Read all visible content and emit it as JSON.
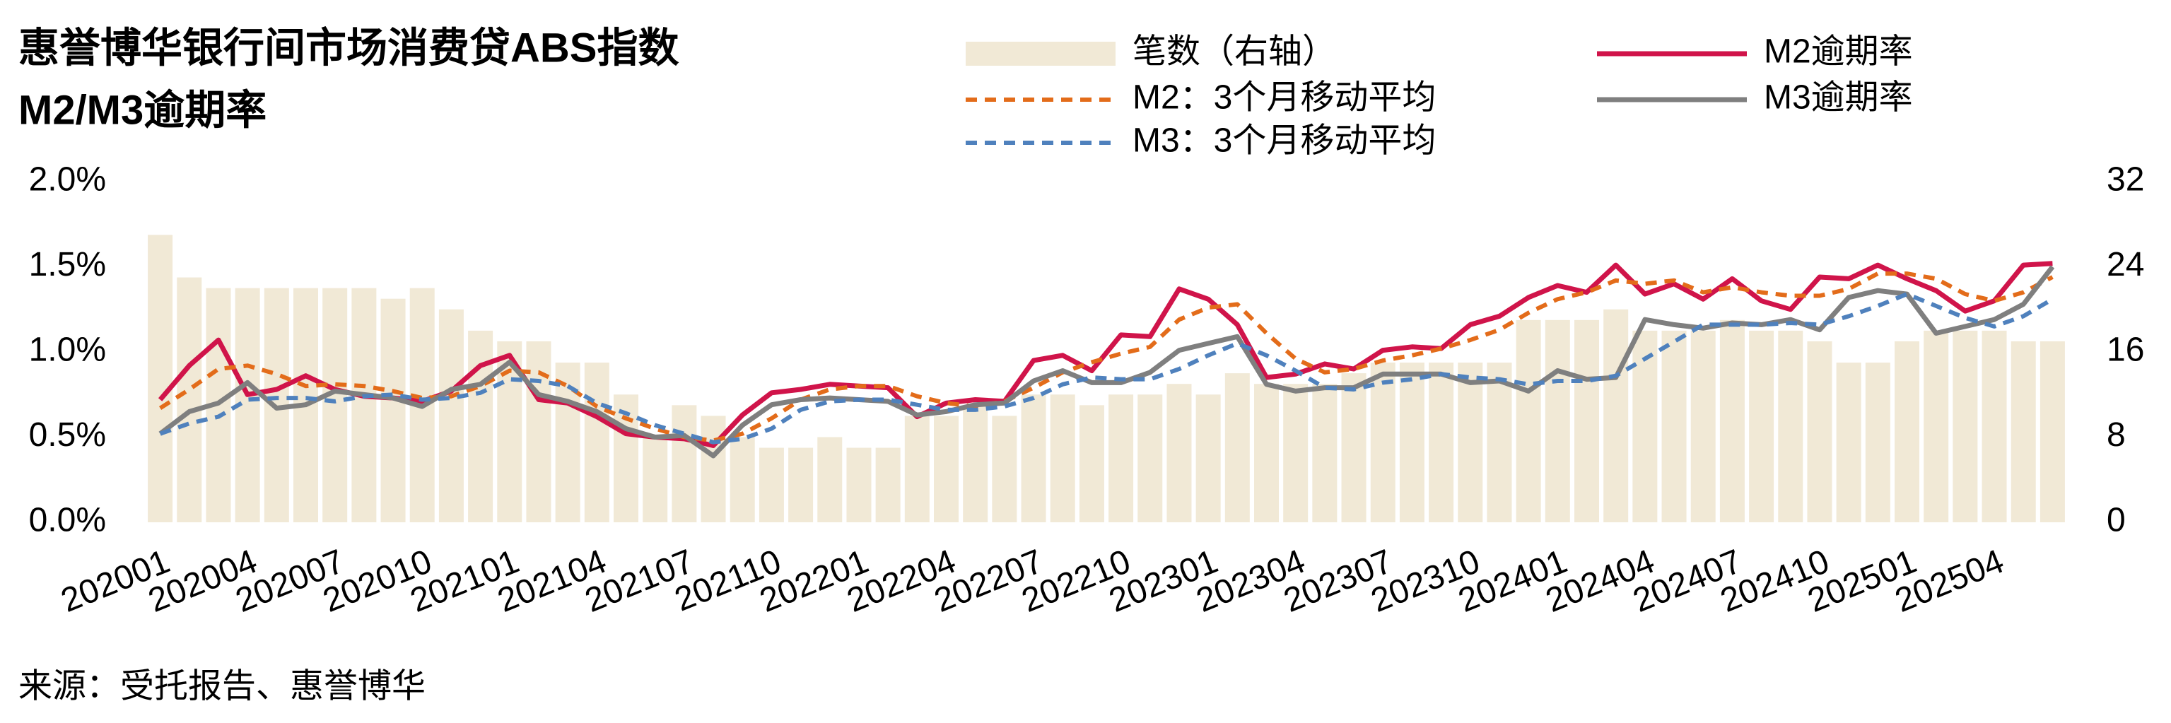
{
  "chart_data": {
    "type": "combo",
    "title": "惠誉博华银行间市场消费贷ABS指数",
    "subtitle": "M2/M3逾期率",
    "source": "来源：受托报告、惠誉博华",
    "categories": [
      "202001",
      null,
      null,
      "202004",
      null,
      null,
      "202007",
      null,
      null,
      "202010",
      null,
      null,
      "202101",
      null,
      null,
      "202104",
      null,
      null,
      "202107",
      null,
      null,
      "202110",
      null,
      null,
      "202201",
      null,
      null,
      "202204",
      null,
      null,
      "202207",
      null,
      null,
      "202210",
      null,
      null,
      "202301",
      null,
      null,
      "202304",
      null,
      null,
      "202307",
      null,
      null,
      "202310",
      null,
      null,
      "202401",
      null,
      null,
      "202404",
      null,
      null,
      "202407",
      null,
      null,
      "202410",
      null,
      null,
      "202501",
      null,
      null,
      "202504",
      null,
      null
    ],
    "ylim": [
      0,
      2.0
    ],
    "yticks": [
      {
        "value": 0,
        "label": "0.0%"
      },
      {
        "value": 0.5,
        "label": "0.5%"
      },
      {
        "value": 1.0,
        "label": "1.0%"
      },
      {
        "value": 1.5,
        "label": "1.5%"
      },
      {
        "value": 2.0,
        "label": "2.0%"
      }
    ],
    "y2lim": [
      0,
      32
    ],
    "y2ticks": [
      0,
      8,
      16,
      24,
      32
    ],
    "grid": false,
    "series": [
      {
        "name": "笔数（右轴）",
        "type": "bar",
        "axis": "y2",
        "color": "#f1e9d6",
        "values": [
          27,
          23,
          22,
          22,
          22,
          22,
          22,
          22,
          21,
          22,
          20,
          18,
          17,
          17,
          15,
          15,
          12,
          8,
          11,
          10,
          8,
          7,
          7,
          8,
          7,
          7,
          10,
          10,
          11,
          10,
          12,
          12,
          11,
          12,
          12,
          13,
          12,
          14,
          13,
          13,
          13,
          14,
          15,
          15,
          15,
          15,
          15,
          19,
          19,
          19,
          20,
          18,
          18,
          18,
          19,
          18,
          18,
          17,
          15,
          15,
          17,
          18,
          18,
          18,
          17,
          17
        ]
      },
      {
        "name": "M2逾期率",
        "type": "line",
        "color": "#d0144a",
        "values": [
          0.72,
          0.92,
          1.07,
          0.75,
          0.78,
          0.86,
          0.78,
          0.74,
          0.73,
          0.71,
          0.77,
          0.92,
          0.98,
          0.72,
          0.7,
          0.62,
          0.52,
          0.5,
          0.49,
          0.45,
          0.63,
          0.76,
          0.78,
          0.81,
          0.8,
          0.79,
          0.62,
          0.7,
          0.72,
          0.71,
          0.95,
          0.98,
          0.89,
          1.1,
          1.09,
          1.37,
          1.31,
          1.16,
          0.85,
          0.87,
          0.93,
          0.9,
          1.01,
          1.03,
          1.02,
          1.16,
          1.21,
          1.32,
          1.39,
          1.35,
          1.51,
          1.34,
          1.4,
          1.31,
          1.43,
          1.3,
          1.25,
          1.44,
          1.43,
          1.51,
          1.43,
          1.36,
          1.24,
          1.3,
          1.51,
          1.52
        ]
      },
      {
        "name": "M2：3个月移动平均",
        "type": "line",
        "dashed": true,
        "color": "#e36c1a",
        "values": [
          0.67,
          0.78,
          0.9,
          0.92,
          0.87,
          0.8,
          0.81,
          0.8,
          0.77,
          0.73,
          0.74,
          0.8,
          0.89,
          0.88,
          0.8,
          0.68,
          0.61,
          0.55,
          0.5,
          0.48,
          0.52,
          0.61,
          0.72,
          0.78,
          0.8,
          0.8,
          0.74,
          0.7,
          0.68,
          0.71,
          0.79,
          0.88,
          0.94,
          0.99,
          1.03,
          1.19,
          1.26,
          1.28,
          1.11,
          0.96,
          0.88,
          0.9,
          0.95,
          0.98,
          1.02,
          1.07,
          1.13,
          1.23,
          1.31,
          1.35,
          1.42,
          1.4,
          1.42,
          1.35,
          1.38,
          1.35,
          1.33,
          1.33,
          1.37,
          1.46,
          1.46,
          1.43,
          1.34,
          1.3,
          1.35,
          1.44
        ]
      },
      {
        "name": "M3逾期率",
        "type": "line",
        "color": "#7f7f7f",
        "values": [
          0.52,
          0.65,
          0.7,
          0.82,
          0.67,
          0.69,
          0.77,
          0.75,
          0.73,
          0.68,
          0.78,
          0.81,
          0.94,
          0.75,
          0.71,
          0.65,
          0.55,
          0.5,
          0.51,
          0.39,
          0.57,
          0.69,
          0.72,
          0.73,
          0.72,
          0.71,
          0.63,
          0.65,
          0.69,
          0.7,
          0.83,
          0.89,
          0.82,
          0.82,
          0.88,
          1.01,
          1.05,
          1.09,
          0.81,
          0.77,
          0.79,
          0.79,
          0.87,
          0.87,
          0.87,
          0.82,
          0.83,
          0.77,
          0.89,
          0.84,
          0.85,
          1.19,
          1.16,
          1.14,
          1.17,
          1.16,
          1.19,
          1.13,
          1.32,
          1.36,
          1.34,
          1.11,
          1.15,
          1.19,
          1.28,
          1.5
        ]
      },
      {
        "name": "M3：3个月移动平均",
        "type": "line",
        "dashed": true,
        "color": "#4f81bd",
        "values": [
          0.52,
          0.58,
          0.62,
          0.72,
          0.73,
          0.73,
          0.71,
          0.74,
          0.75,
          0.72,
          0.73,
          0.76,
          0.84,
          0.83,
          0.8,
          0.7,
          0.64,
          0.57,
          0.52,
          0.47,
          0.49,
          0.55,
          0.66,
          0.71,
          0.72,
          0.72,
          0.69,
          0.66,
          0.66,
          0.68,
          0.73,
          0.81,
          0.85,
          0.84,
          0.84,
          0.9,
          0.98,
          1.05,
          0.98,
          0.89,
          0.79,
          0.78,
          0.82,
          0.84,
          0.87,
          0.85,
          0.84,
          0.81,
          0.83,
          0.83,
          0.86,
          0.96,
          1.06,
          1.16,
          1.16,
          1.16,
          1.17,
          1.16,
          1.21,
          1.27,
          1.34,
          1.27,
          1.2,
          1.15,
          1.21,
          1.31
        ]
      }
    ]
  }
}
